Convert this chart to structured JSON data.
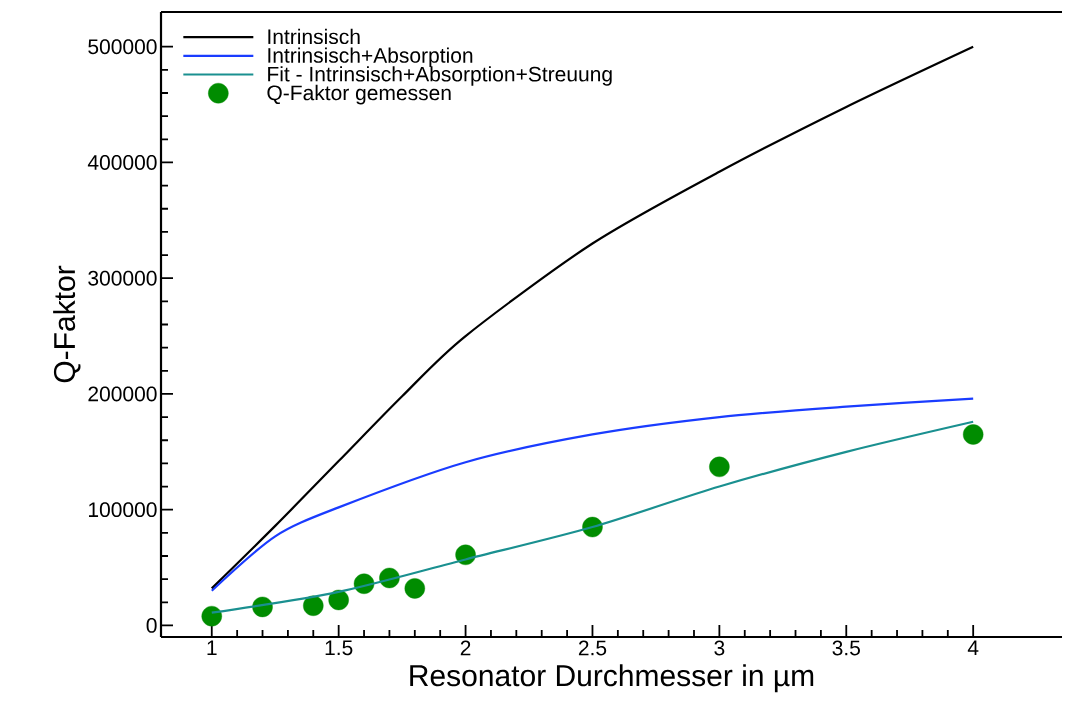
{
  "chart_data": {
    "type": "line",
    "xlabel": "Resonator Durchmesser in µm",
    "ylabel": "Q-Faktor",
    "xlim": [
      0.8,
      4.35
    ],
    "ylim": [
      -10000,
      530000
    ],
    "xticks": [
      1,
      1.5,
      2,
      2.5,
      3,
      3.5,
      4
    ],
    "yticks": [
      0,
      100000,
      200000,
      300000,
      400000,
      500000
    ],
    "grid": false,
    "legend": "top left",
    "series": [
      {
        "name": "Intrinsisch",
        "color": "#000000",
        "x": [
          1,
          1.25,
          1.5,
          1.75,
          2,
          2.5,
          3,
          3.5,
          4
        ],
        "values": [
          32000,
          86000,
          142000,
          198000,
          250000,
          330000,
          392000,
          448000,
          500000
        ]
      },
      {
        "name": "Intrinsisch+Absorption",
        "color": "#1a3cff",
        "x": [
          1,
          1.25,
          1.5,
          2,
          2.5,
          3,
          3.5,
          4
        ],
        "values": [
          30000,
          77000,
          102000,
          141000,
          165000,
          180000,
          189000,
          196000
        ]
      },
      {
        "name": "Fit - Intrinsisch+Absorption+Streuung",
        "color": "#1a9090",
        "x": [
          1,
          1.5,
          2,
          2.5,
          3,
          3.5,
          4
        ],
        "values": [
          11000,
          29000,
          57000,
          85000,
          120000,
          150000,
          176000
        ]
      },
      {
        "name": "Q-Faktor gemessen",
        "color": "#008c00",
        "type": "scatter",
        "marker": "circle",
        "x": [
          1,
          1.2,
          1.4,
          1.5,
          1.6,
          1.7,
          1.8,
          2,
          2.5,
          3,
          4
        ],
        "values": [
          8000,
          16000,
          17000,
          22000,
          36000,
          41000,
          32000,
          61000,
          85000,
          137000,
          165000
        ]
      }
    ]
  }
}
